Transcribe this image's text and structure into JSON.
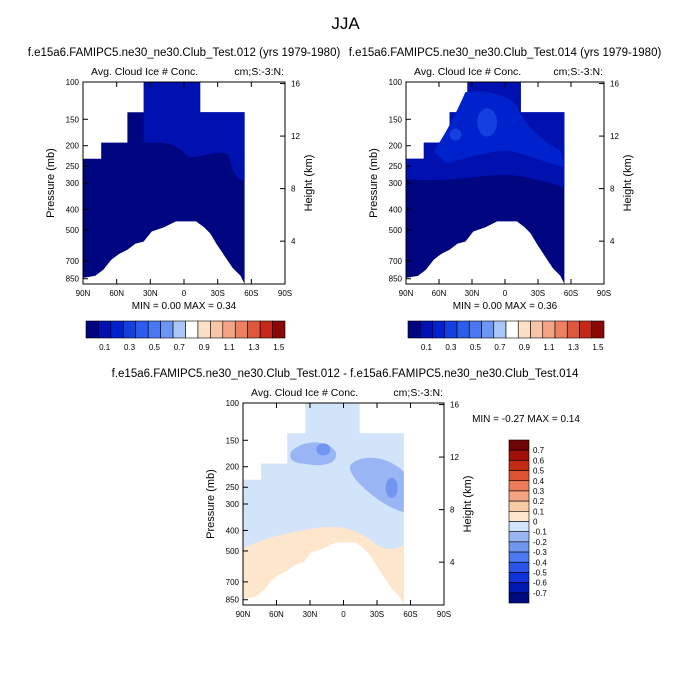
{
  "figure_title": "JJA",
  "chart_data": [
    {
      "type": "heatmap",
      "title": "f.e15a6.FAMIPC5.ne30_ne30.Club_Test.012 (yrs 1979-1980)",
      "variable_label": "Avg. Cloud Ice # Conc.",
      "units_label": "cm;S:-3:N:",
      "xlabel": "",
      "ylabel": "Pressure (mb)",
      "right_axis_label": "Height (km)",
      "x_tick_labels": [
        "90N",
        "60N",
        "30N",
        "0",
        "30S",
        "60S",
        "90S"
      ],
      "x_tick_values": [
        90,
        60,
        30,
        0,
        -30,
        -60,
        -90
      ],
      "y_tick_labels": [
        "100",
        "150",
        "200",
        "250",
        "300",
        "400",
        "500",
        "700",
        "850"
      ],
      "y_tick_values": [
        100,
        150,
        200,
        250,
        300,
        400,
        500,
        700,
        850
      ],
      "ylim": [
        100,
        900
      ],
      "height_tick_labels": [
        "16",
        "12",
        "8",
        "4"
      ],
      "height_tick_values": [
        16,
        12,
        8,
        4
      ],
      "min_label": "MIN =  0.00  MAX =  0.34",
      "min": 0.0,
      "max": 0.34,
      "colorbar_levels": [
        "0.1",
        "0.3",
        "0.5",
        "0.7",
        "0.9",
        "1.1",
        "1.3",
        "1.5"
      ],
      "colorbar_bins": 16,
      "colorbar_orientation": "horizontal"
    },
    {
      "type": "heatmap",
      "title": "f.e15a6.FAMIPC5.ne30_ne30.Club_Test.014 (yrs 1979-1980)",
      "variable_label": "Avg. Cloud Ice # Conc.",
      "units_label": "cm;S:-3:N:",
      "xlabel": "",
      "ylabel": "Pressure (mb)",
      "right_axis_label": "Height (km)",
      "x_tick_labels": [
        "90N",
        "60N",
        "30N",
        "0",
        "30S",
        "60S",
        "90S"
      ],
      "x_tick_values": [
        90,
        60,
        30,
        0,
        -30,
        -60,
        -90
      ],
      "y_tick_labels": [
        "100",
        "150",
        "200",
        "250",
        "300",
        "400",
        "500",
        "700",
        "850"
      ],
      "y_tick_values": [
        100,
        150,
        200,
        250,
        300,
        400,
        500,
        700,
        850
      ],
      "ylim": [
        100,
        900
      ],
      "height_tick_labels": [
        "16",
        "12",
        "8",
        "4"
      ],
      "height_tick_values": [
        16,
        12,
        8,
        4
      ],
      "min_label": "MIN =  0.00  MAX =  0.36",
      "min": 0.0,
      "max": 0.36,
      "colorbar_levels": [
        "0.1",
        "0.3",
        "0.5",
        "0.7",
        "0.9",
        "1.1",
        "1.3",
        "1.5"
      ],
      "colorbar_bins": 16,
      "colorbar_orientation": "horizontal"
    },
    {
      "type": "heatmap",
      "title": "f.e15a6.FAMIPC5.ne30_ne30.Club_Test.012 - f.e15a6.FAMIPC5.ne30_ne30.Club_Test.014",
      "variable_label": "Avg. Cloud Ice # Conc.",
      "units_label": "cm;S:-3:N:",
      "xlabel": "",
      "ylabel": "Pressure (mb)",
      "right_axis_label": "Height (km)",
      "x_tick_labels": [
        "90N",
        "60N",
        "30N",
        "0",
        "30S",
        "60S",
        "90S"
      ],
      "x_tick_values": [
        90,
        60,
        30,
        0,
        -30,
        -60,
        -90
      ],
      "y_tick_labels": [
        "100",
        "150",
        "200",
        "250",
        "300",
        "400",
        "500",
        "700",
        "850"
      ],
      "y_tick_values": [
        100,
        150,
        200,
        250,
        300,
        400,
        500,
        700,
        850
      ],
      "ylim": [
        100,
        900
      ],
      "height_tick_labels": [
        "16",
        "12",
        "8",
        "4"
      ],
      "height_tick_values": [
        16,
        12,
        8,
        4
      ],
      "min_label": "MIN = -0.27  MAX =  0.14",
      "min": -0.27,
      "max": 0.14,
      "colorbar_levels": [
        "0.7",
        "0.6",
        "0.5",
        "0.4",
        "0.3",
        "0.2",
        "0.1",
        "0",
        "-0.1",
        "-0.2",
        "-0.3",
        "-0.4",
        "-0.5",
        "-0.6",
        "-0.7"
      ],
      "colorbar_bins": 16,
      "colorbar_orientation": "vertical"
    }
  ],
  "colors": {
    "seq_scale": [
      "#000580",
      "#0011b0",
      "#0022cc",
      "#1440e0",
      "#2c5cec",
      "#4a78f0",
      "#6c95f4",
      "#a8c6f8",
      "#ffffff",
      "#fbe0c8",
      "#f8c4a8",
      "#f4a484",
      "#ee8060",
      "#e0583c",
      "#c42818",
      "#8a0808"
    ],
    "diff_scale": [
      "#000a80",
      "#0018b0",
      "#1032d6",
      "#2c55e8",
      "#4c78f0",
      "#7196f2",
      "#9ab5f4",
      "#d2e4fa",
      "#fde6cc",
      "#f9caa6",
      "#f4a482",
      "#ec7c5a",
      "#dc5232",
      "#c22c14",
      "#a01008",
      "#6e0404"
    ],
    "missing": "#ffffff"
  }
}
